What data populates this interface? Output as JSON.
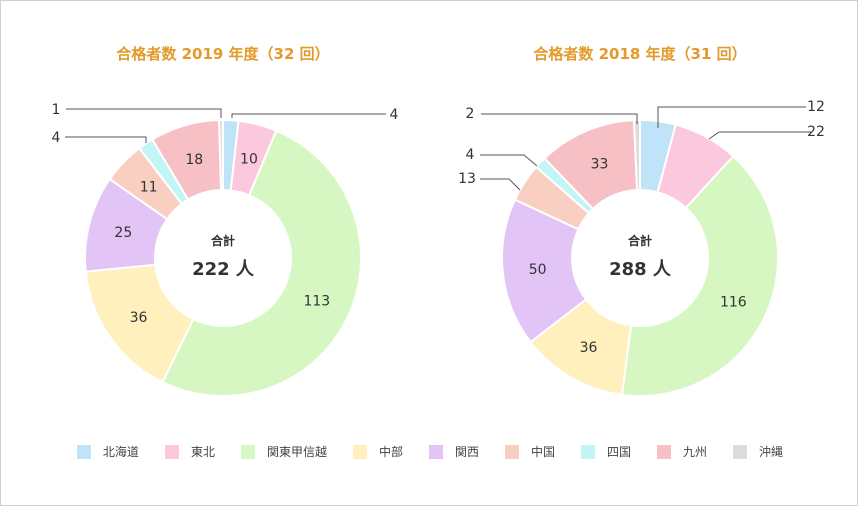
{
  "regions": [
    "北海道",
    "東北",
    "関東甲信越",
    "中部",
    "関西",
    "中国",
    "四国",
    "九州",
    "沖縄"
  ],
  "colors": [
    "#bfe3f7",
    "#fcc8dd",
    "#d6f7c2",
    "#fff0be",
    "#e3c4f7",
    "#f9cfc2",
    "#c2f5f5",
    "#f6c0c4",
    "#dcdcdc"
  ],
  "chart_data": [
    {
      "type": "pie",
      "title": "合格者数 2019 年度（32 回）",
      "center_caption": "合計",
      "total_label": "222 人",
      "categories": [
        "北海道",
        "東北",
        "関東甲信越",
        "中部",
        "関西",
        "中国",
        "四国",
        "九州",
        "沖縄"
      ],
      "values": [
        4,
        10,
        113,
        36,
        25,
        11,
        4,
        18,
        1
      ]
    },
    {
      "type": "pie",
      "title": "合格者数 2018 年度（31 回）",
      "center_caption": "合計",
      "total_label": "288 人",
      "categories": [
        "北海道",
        "東北",
        "関東甲信越",
        "中部",
        "関西",
        "中国",
        "四国",
        "九州",
        "沖縄"
      ],
      "values": [
        12,
        22,
        116,
        36,
        50,
        13,
        4,
        33,
        2
      ]
    }
  ]
}
